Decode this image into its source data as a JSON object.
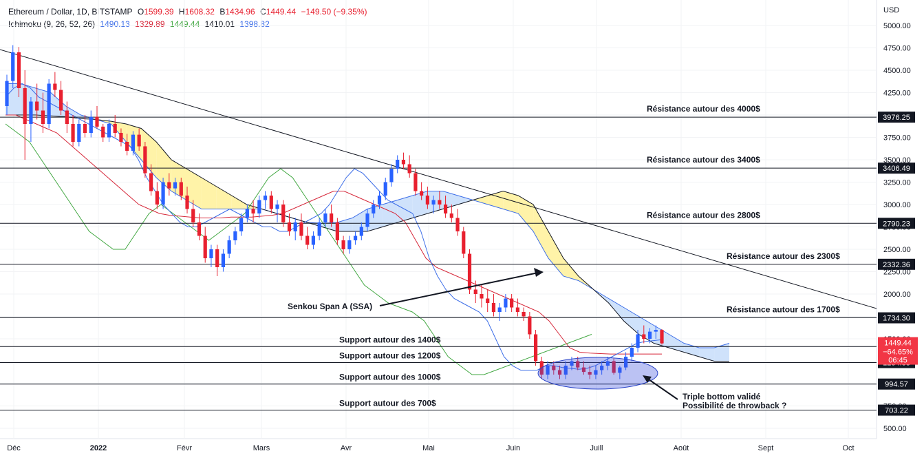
{
  "legend": {
    "line1": {
      "symbol": "Ethereum / Dollar, 1D, BITSTAMP",
      "o_label": "O",
      "o": "1599.39",
      "h_label": "H",
      "h": "1608.32",
      "b_label": "B",
      "b": "1434.96",
      "c_label": "C",
      "c": "1449.44",
      "change": "−149.50 (−9.35%)"
    },
    "line2": {
      "indicator": "Ichimoku (9, 26, 52, 26)",
      "v1": "1490.13",
      "v2": "1329.89",
      "v3": "1449.44",
      "v4": "1410.01",
      "v5": "1398.82"
    }
  },
  "colors": {
    "up": "#2962ff",
    "down": "#e8202f",
    "tenkan": "#3d6ee8",
    "kijun": "#d6283a",
    "chikou": "#43a843",
    "cloud_bull": "#fff3a8",
    "cloud_bear": "#cfe2fb",
    "ssa": "#3d6ee8",
    "ssb": "#131722"
  },
  "chart_data": {
    "type": "candlestick",
    "y_axis": {
      "unit": "USD",
      "ticks": [
        500,
        750,
        1000,
        1250,
        1500,
        1750,
        2000,
        2250,
        2500,
        2750,
        3000,
        3250,
        3500,
        3750,
        4000,
        4250,
        4500,
        4750,
        5000
      ],
      "tick_labels": [
        "500.00",
        "750.00",
        "1000.00",
        "1250.00",
        "1500.00",
        "1750.00",
        "2000.00",
        "2250.00",
        "2500.00",
        "2750.00",
        "3000.00",
        "3250.00",
        "3500.00",
        "3750.00",
        "4000.00",
        "4250.00",
        "4500.00",
        "4750.00",
        "5000.00"
      ]
    },
    "x_axis": {
      "labels": [
        "Déc",
        "2022",
        "Févr",
        "Mars",
        "Avr",
        "Mai",
        "Juin",
        "Juill",
        "Août",
        "Sept",
        "Oct"
      ]
    },
    "price_lines": [
      {
        "value": 3976.25,
        "label": "3976.25",
        "annotation": "Résistance autour des 4000$"
      },
      {
        "value": 3406.49,
        "label": "3406.49",
        "annotation": "Résistance autour des 3400$"
      },
      {
        "value": 2790.23,
        "label": "2790.23",
        "annotation": "Résistance autour des 2800$"
      },
      {
        "value": 2332.36,
        "label": "2332.36",
        "annotation": "Résistance autour des 2300$"
      },
      {
        "value": 1734.3,
        "label": "1734.30",
        "annotation": "Résistance autour des 1700$"
      },
      {
        "value": 1413.07,
        "label": "1413.07",
        "annotation": "Support autour des 1400$"
      },
      {
        "value": 1234.33,
        "label": "1234.33",
        "annotation": "Support autour des 1200$"
      },
      {
        "value": 994.57,
        "label": "994.57",
        "annotation": "Support autour des 1000$"
      },
      {
        "value": 703.22,
        "label": "703.22",
        "annotation": "Support autour des 700$"
      }
    ],
    "current_price": {
      "value": 1449.44,
      "label": "1449.44",
      "change": "−64.65%",
      "countdown": "06:45"
    },
    "annotations": {
      "ssa": "Senkou Span A (SSA)",
      "triple_bottom_1": "Triple bottom validé",
      "triple_bottom_2": "Possibilité de throwback ?"
    },
    "candles": [
      [
        4100,
        4450,
        4000,
        4380
      ],
      [
        4380,
        4780,
        4300,
        4700
      ],
      [
        4700,
        4760,
        4200,
        4300
      ],
      [
        4300,
        4500,
        3500,
        3900
      ],
      [
        3900,
        4200,
        3700,
        4150
      ],
      [
        4150,
        4350,
        3950,
        4050
      ],
      [
        4050,
        4250,
        3800,
        3900
      ],
      [
        3900,
        4400,
        3850,
        4350
      ],
      [
        4350,
        4480,
        4200,
        4280
      ],
      [
        4280,
        4380,
        4000,
        4050
      ],
      [
        4050,
        4150,
        3800,
        3900
      ],
      [
        3900,
        4000,
        3650,
        3700
      ],
      [
        3700,
        3950,
        3650,
        3900
      ],
      [
        3900,
        4000,
        3750,
        3800
      ],
      [
        3800,
        4050,
        3750,
        3980
      ],
      [
        3980,
        4100,
        3850,
        3870
      ],
      [
        3870,
        3900,
        3700,
        3750
      ],
      [
        3750,
        3950,
        3700,
        3900
      ],
      [
        3900,
        4000,
        3750,
        3800
      ],
      [
        3800,
        3850,
        3650,
        3700
      ],
      [
        3700,
        3790,
        3550,
        3600
      ],
      [
        3600,
        3820,
        3550,
        3780
      ],
      [
        3780,
        3850,
        3600,
        3650
      ],
      [
        3650,
        3700,
        3300,
        3350
      ],
      [
        3350,
        3450,
        3100,
        3150
      ],
      [
        3150,
        3250,
        2950,
        3000
      ],
      [
        3000,
        3300,
        2950,
        3250
      ],
      [
        3250,
        3350,
        3100,
        3180
      ],
      [
        3180,
        3300,
        3100,
        3250
      ],
      [
        3250,
        3300,
        3050,
        3100
      ],
      [
        3100,
        3200,
        2900,
        2950
      ],
      [
        2950,
        3050,
        2750,
        2800
      ],
      [
        2800,
        2900,
        2600,
        2650
      ],
      [
        2650,
        2750,
        2350,
        2400
      ],
      [
        2400,
        2550,
        2300,
        2500
      ],
      [
        2500,
        2550,
        2200,
        2300
      ],
      [
        2300,
        2500,
        2250,
        2450
      ],
      [
        2450,
        2650,
        2400,
        2600
      ],
      [
        2600,
        2750,
        2550,
        2700
      ],
      [
        2700,
        2900,
        2650,
        2850
      ],
      [
        2850,
        3000,
        2800,
        2950
      ],
      [
        2950,
        3050,
        2800,
        2900
      ],
      [
        2900,
        3100,
        2850,
        3050
      ],
      [
        3050,
        3150,
        2950,
        3100
      ],
      [
        3100,
        3150,
        2900,
        2950
      ],
      [
        2950,
        3050,
        2800,
        3000
      ],
      [
        3000,
        3050,
        2750,
        2800
      ],
      [
        2800,
        2900,
        2650,
        2700
      ],
      [
        2700,
        2850,
        2600,
        2800
      ],
      [
        2800,
        2900,
        2600,
        2650
      ],
      [
        2650,
        2750,
        2500,
        2550
      ],
      [
        2550,
        2700,
        2500,
        2650
      ],
      [
        2650,
        2850,
        2600,
        2800
      ],
      [
        2800,
        2950,
        2750,
        2900
      ],
      [
        2900,
        3000,
        2750,
        2800
      ],
      [
        2800,
        2850,
        2550,
        2600
      ],
      [
        2600,
        2650,
        2450,
        2500
      ],
      [
        2500,
        2650,
        2450,
        2600
      ],
      [
        2600,
        2700,
        2550,
        2650
      ],
      [
        2650,
        2800,
        2600,
        2750
      ],
      [
        2750,
        2950,
        2700,
        2900
      ],
      [
        2900,
        3050,
        2850,
        3000
      ],
      [
        3000,
        3150,
        2950,
        3100
      ],
      [
        3100,
        3300,
        3050,
        3250
      ],
      [
        3250,
        3450,
        3200,
        3400
      ],
      [
        3400,
        3550,
        3350,
        3500
      ],
      [
        3500,
        3580,
        3400,
        3450
      ],
      [
        3450,
        3550,
        3300,
        3350
      ],
      [
        3350,
        3400,
        3100,
        3150
      ],
      [
        3150,
        3250,
        3050,
        3100
      ],
      [
        3100,
        3200,
        2950,
        3000
      ],
      [
        3000,
        3100,
        2900,
        3050
      ],
      [
        3050,
        3150,
        2950,
        3000
      ],
      [
        3000,
        3100,
        2850,
        2900
      ],
      [
        2900,
        3000,
        2800,
        2850
      ],
      [
        2850,
        2950,
        2650,
        2700
      ],
      [
        2700,
        2750,
        2400,
        2450
      ],
      [
        2450,
        2500,
        2000,
        2050
      ],
      [
        2050,
        2150,
        1900,
        2000
      ],
      [
        2000,
        2100,
        1850,
        1950
      ],
      [
        1950,
        2050,
        1800,
        1900
      ],
      [
        1900,
        2000,
        1750,
        1800
      ],
      [
        1800,
        1900,
        1700,
        1850
      ],
      [
        1850,
        2000,
        1800,
        1950
      ],
      [
        1950,
        2000,
        1800,
        1850
      ],
      [
        1850,
        1950,
        1750,
        1800
      ],
      [
        1800,
        1850,
        1700,
        1750
      ],
      [
        1750,
        1800,
        1500,
        1550
      ],
      [
        1550,
        1600,
        1200,
        1250
      ],
      [
        1250,
        1300,
        1050,
        1100
      ],
      [
        1100,
        1250,
        1050,
        1200
      ],
      [
        1200,
        1250,
        1100,
        1150
      ],
      [
        1150,
        1200,
        1050,
        1100
      ],
      [
        1100,
        1250,
        1050,
        1200
      ],
      [
        1200,
        1300,
        1150,
        1250
      ],
      [
        1250,
        1300,
        1150,
        1180
      ],
      [
        1180,
        1250,
        1100,
        1130
      ],
      [
        1130,
        1200,
        1050,
        1100
      ],
      [
        1100,
        1200,
        1050,
        1150
      ],
      [
        1150,
        1250,
        1100,
        1200
      ],
      [
        1200,
        1300,
        1150,
        1250
      ],
      [
        1250,
        1280,
        1100,
        1120
      ],
      [
        1120,
        1200,
        1050,
        1180
      ],
      [
        1180,
        1350,
        1150,
        1300
      ],
      [
        1300,
        1450,
        1250,
        1400
      ],
      [
        1400,
        1600,
        1350,
        1550
      ],
      [
        1550,
        1650,
        1450,
        1500
      ],
      [
        1500,
        1620,
        1450,
        1580
      ],
      [
        1580,
        1650,
        1500,
        1599
      ],
      [
        1599,
        1608,
        1435,
        1449
      ]
    ],
    "tenkan": [
      4200,
      4300,
      4350,
      4300,
      4200,
      4150,
      4100,
      4050,
      4000,
      3950,
      3900,
      3850,
      3800,
      3750,
      3700,
      3650,
      3500,
      3300,
      3150,
      3000,
      2900,
      2800,
      2750,
      2750,
      2800,
      2850,
      2900,
      2950,
      2900,
      2850,
      2800,
      2750,
      2750,
      2700,
      2700,
      2750,
      2800,
      2850,
      2900,
      3000,
      3150,
      3300,
      3400,
      3350,
      3250,
      3150,
      3050,
      3000,
      2950,
      2900,
      2700,
      2400,
      2200,
      2050,
      1950,
      1900,
      1850,
      1800,
      1700,
      1500,
      1300,
      1200,
      1150,
      1150,
      1150,
      1200,
      1200,
      1180,
      1170,
      1160,
      1170,
      1200,
      1250,
      1300,
      1350,
      1400,
      1450,
      1470,
      1480,
      1490
    ],
    "kijun": [
      4000,
      4000,
      3950,
      3900,
      3850,
      3800,
      3700,
      3600,
      3500,
      3400,
      3300,
      3200,
      3100,
      3000,
      2950,
      2900,
      2880,
      2870,
      2860,
      2850,
      2850,
      2850,
      2860,
      2860,
      2860,
      2870,
      2880,
      2900,
      2950,
      3000,
      3050,
      3100,
      3150,
      3150,
      3100,
      3050,
      3000,
      2950,
      2900,
      2800,
      2600,
      2400,
      2300,
      2250,
      2200,
      2150,
      2100,
      2050,
      2000,
      1950,
      1900,
      1850,
      1800,
      1700,
      1550,
      1400,
      1350,
      1340,
      1335,
      1330,
      1330,
      1330,
      1330,
      1330,
      1330
    ],
    "chikou": [
      3900,
      3800,
      3700,
      3500,
      3300,
      3100,
      2900,
      2700,
      2600,
      2500,
      2500,
      2700,
      2900,
      3000,
      2900,
      2800,
      2700,
      2600,
      2700,
      2800,
      2900,
      3100,
      3300,
      3400,
      3300,
      3100,
      2900,
      2700,
      2500,
      2300,
      2100,
      2000,
      1900,
      1850,
      1800,
      1700,
      1500,
      1300,
      1200,
      1100,
      1100,
      1150,
      1200,
      1250,
      1300,
      1350,
      1400,
      1450,
      1500,
      1550
    ],
    "ssa": [
      4350,
      4350,
      4300,
      4250,
      4100,
      4000,
      3950,
      3900,
      3700,
      3500,
      3300,
      3150,
      3050,
      2950,
      2950,
      2950,
      2950,
      2950,
      2900,
      2850,
      2800,
      2790,
      2800,
      2850,
      2950,
      3000,
      3050,
      3100,
      3150,
      3150,
      3100,
      3050,
      3000,
      2950,
      2900,
      2700,
      2400,
      2200,
      2150,
      2050,
      1950,
      1850,
      1750,
      1650,
      1550,
      1450,
      1400,
      1400,
      1450
    ],
    "ssb": [
      4000,
      4000,
      4000,
      3990,
      3980,
      3960,
      3950,
      3930,
      3900,
      3850,
      3700,
      3500,
      3400,
      3300,
      3200,
      3100,
      3000,
      2950,
      2900,
      2850,
      2800,
      2750,
      2700,
      2700,
      2700,
      2750,
      2800,
      2850,
      2900,
      2950,
      3000,
      3050,
      3100,
      3150,
      3100,
      3000,
      2700,
      2400,
      2200,
      2050,
      1900,
      1700,
      1550,
      1450,
      1400,
      1350,
      1300,
      1250,
      1250
    ]
  }
}
